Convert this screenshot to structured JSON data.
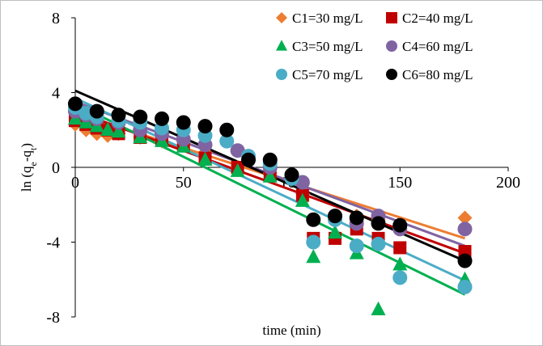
{
  "chart_data": {
    "type": "scatter",
    "title": "",
    "xlabel": "time (min)",
    "ylabel_main": "ln (q",
    "ylabel_sub1": "e",
    "ylabel_mid": "-q",
    "ylabel_sub2": "t",
    "ylabel_end": ")",
    "xlim": [
      0,
      200
    ],
    "ylim": [
      -8,
      8
    ],
    "xticks": [
      0,
      50,
      100,
      150,
      200
    ],
    "yticks": [
      8,
      4,
      0,
      -4,
      -8
    ],
    "grid": false,
    "legend_position": "top-right",
    "series": [
      {
        "name": "C1=30 mg/L",
        "marker": "diamond",
        "color": "#ED7D31",
        "x": [
          0,
          5,
          10,
          15,
          20,
          30,
          40,
          50,
          60,
          75,
          90,
          105,
          120,
          130,
          140,
          150,
          180
        ],
        "y": [
          2.3,
          2.0,
          1.8,
          1.7,
          1.8,
          1.6,
          1.4,
          1.2,
          0.8,
          0.0,
          -0.3,
          -1.4,
          -2.6,
          -2.6,
          -2.8,
          -3.0,
          -2.7
        ],
        "fit": {
          "slope": -0.0372,
          "intercept": 2.9
        }
      },
      {
        "name": "C2=40 mg/L",
        "marker": "square",
        "color": "#C00000",
        "x": [
          0,
          5,
          10,
          15,
          20,
          30,
          40,
          50,
          60,
          75,
          90,
          105,
          110,
          120,
          130,
          140,
          150,
          180
        ],
        "y": [
          2.5,
          2.3,
          2.1,
          2.0,
          1.8,
          1.6,
          1.5,
          1.2,
          0.5,
          0.0,
          -0.4,
          -1.5,
          -3.8,
          -3.8,
          -3.3,
          -3.8,
          -4.3,
          -4.5
        ],
        "fit": {
          "slope": -0.0422,
          "intercept": 3.0
        }
      },
      {
        "name": "C3=50 mg/L",
        "marker": "triangle",
        "color": "#00B050",
        "x": [
          0,
          5,
          10,
          15,
          20,
          30,
          40,
          50,
          60,
          75,
          90,
          105,
          110,
          120,
          130,
          140,
          150,
          180
        ],
        "y": [
          2.6,
          2.4,
          2.2,
          2.0,
          1.9,
          1.6,
          1.4,
          1.1,
          0.4,
          -0.2,
          -0.5,
          -1.8,
          -4.8,
          -3.5,
          -4.6,
          -7.6,
          -5.2,
          -6.0
        ],
        "fit": {
          "slope": -0.0567,
          "intercept": 3.4
        }
      },
      {
        "name": "C4=60 mg/L",
        "marker": "circle",
        "color": "#8064A2",
        "x": [
          0,
          5,
          10,
          20,
          30,
          40,
          50,
          60,
          75,
          90,
          105,
          120,
          130,
          140,
          150,
          180
        ],
        "y": [
          3.0,
          2.8,
          2.6,
          2.4,
          2.0,
          1.8,
          1.5,
          1.2,
          0.9,
          0.0,
          -0.8,
          -2.6,
          -3.0,
          -2.6,
          -3.3,
          -3.3
        ],
        "fit": {
          "slope": -0.0428,
          "intercept": 3.5
        }
      },
      {
        "name": "C5=70 mg/L",
        "marker": "circle",
        "color": "#4BACC6",
        "x": [
          0,
          5,
          10,
          20,
          30,
          40,
          50,
          60,
          70,
          80,
          90,
          100,
          110,
          120,
          130,
          140,
          150,
          180
        ],
        "y": [
          3.2,
          2.9,
          2.7,
          2.5,
          2.4,
          2.1,
          2.0,
          1.7,
          1.4,
          0.6,
          0.2,
          -0.6,
          -4.0,
          -2.8,
          -4.2,
          -4.1,
          -5.9,
          -6.4
        ],
        "fit": {
          "slope": -0.0542,
          "intercept": 3.7
        }
      },
      {
        "name": "C6=80 mg/L",
        "marker": "circle",
        "color": "#000000",
        "x": [
          0,
          10,
          20,
          30,
          40,
          50,
          60,
          70,
          80,
          90,
          100,
          110,
          120,
          130,
          140,
          150,
          180
        ],
        "y": [
          3.4,
          3.0,
          2.8,
          2.7,
          2.6,
          2.4,
          2.2,
          2.0,
          0.4,
          0.4,
          -0.4,
          -2.8,
          -2.6,
          -2.7,
          -3.0,
          -3.1,
          -5.0
        ],
        "fit": {
          "slope": -0.0506,
          "intercept": 4.1
        }
      }
    ]
  }
}
